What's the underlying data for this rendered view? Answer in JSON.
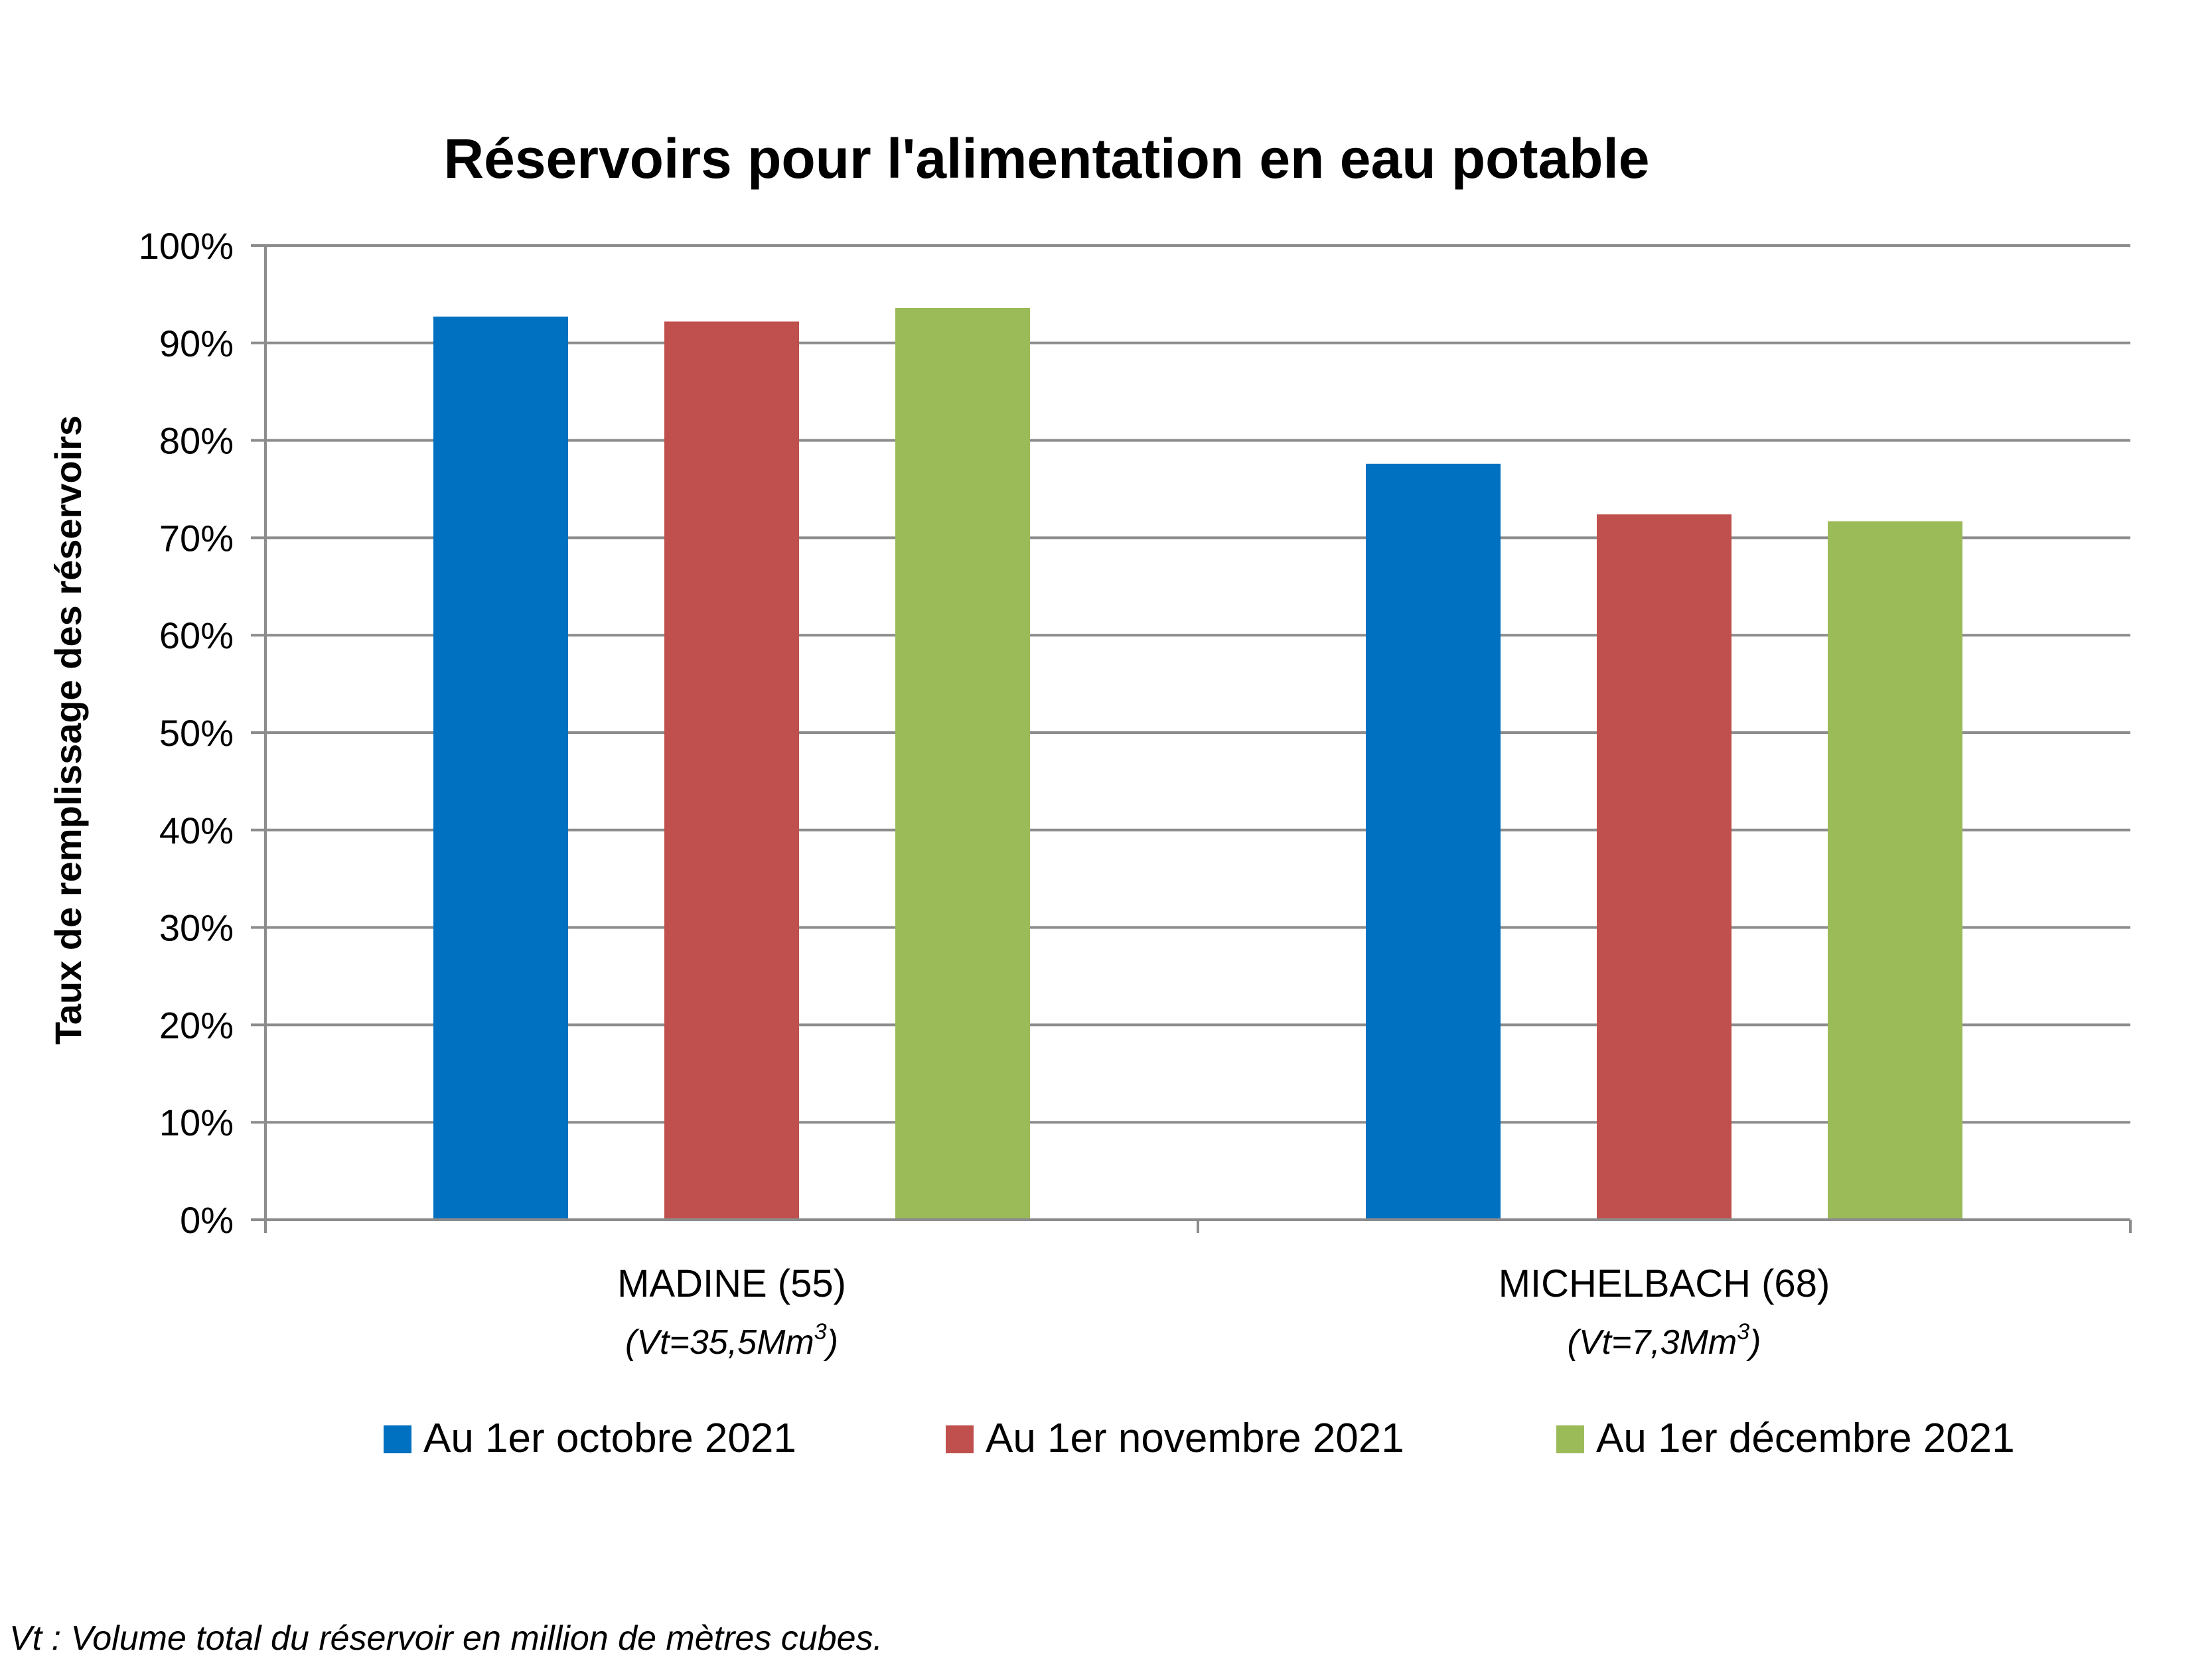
{
  "chart_data": {
    "type": "bar",
    "title": "Réservoirs pour l'alimentation en eau potable",
    "ylabel": "Taux de remplissage des réservoirs",
    "xlabel": "",
    "ylim": [
      0,
      100
    ],
    "yticks": [
      "0%",
      "10%",
      "20%",
      "30%",
      "40%",
      "50%",
      "60%",
      "70%",
      "80%",
      "90%",
      "100%"
    ],
    "grid": true,
    "legend_position": "bottom",
    "categories": [
      {
        "name": "MADINE (55)",
        "volume_prefix": "(Vt=35,5Mm",
        "volume_sup": "3",
        "volume_suffix": ")"
      },
      {
        "name": "MICHELBACH (68)",
        "volume_prefix": "(Vt=7,3Mm",
        "volume_sup": "3",
        "volume_suffix": ")"
      }
    ],
    "series": [
      {
        "name": "Au 1er octobre 2021",
        "color": "#0070C0",
        "values": [
          92.7,
          77.6
        ]
      },
      {
        "name": "Au 1er novembre 2021",
        "color": "#C0504D",
        "values": [
          92.2,
          72.4
        ]
      },
      {
        "name": "Au 1er décembre 2021",
        "color": "#9BBB59",
        "values": [
          93.6,
          71.7
        ]
      }
    ],
    "footnote": "Vt : Volume total du réservoir en million de mètres cubes."
  }
}
